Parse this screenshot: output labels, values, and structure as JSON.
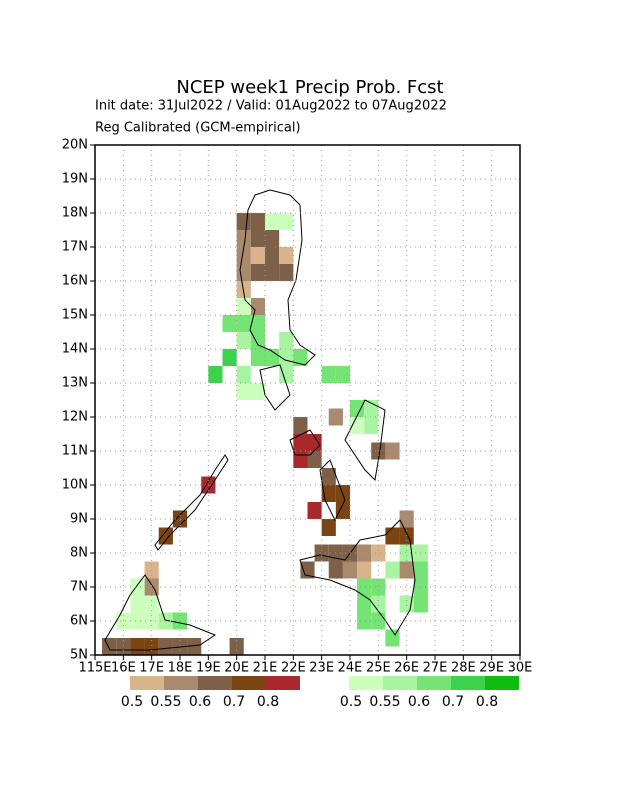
{
  "chart_data": {
    "type": "grid-map",
    "title": "NCEP week1 Precip Prob. Fcst",
    "subtitle": "Init date: 31Jul2022 / Valid: 01Aug2022 to 07Aug2022",
    "note": "Reg Calibrated (GCM-empirical)",
    "xlim": [
      115,
      130
    ],
    "ylim": [
      5,
      20
    ],
    "grid": true,
    "cell_size": 0.5,
    "xticks": [
      {
        "value": 115,
        "label": "115E"
      },
      {
        "value": 116,
        "label": "16E"
      },
      {
        "value": 117,
        "label": "17E"
      },
      {
        "value": 118,
        "label": "18E"
      },
      {
        "value": 119,
        "label": "19E"
      },
      {
        "value": 120,
        "label": "20E"
      },
      {
        "value": 121,
        "label": "21E"
      },
      {
        "value": 122,
        "label": "22E"
      },
      {
        "value": 123,
        "label": "23E"
      },
      {
        "value": 124,
        "label": "24E"
      },
      {
        "value": 125,
        "label": "25E"
      },
      {
        "value": 126,
        "label": "26E"
      },
      {
        "value": 127,
        "label": "27E"
      },
      {
        "value": 128,
        "label": "28E"
      },
      {
        "value": 129,
        "label": "29E"
      },
      {
        "value": 130,
        "label": "30E"
      }
    ],
    "yticks": [
      {
        "value": 5,
        "label": "5N"
      },
      {
        "value": 6,
        "label": "6N"
      },
      {
        "value": 7,
        "label": "7N"
      },
      {
        "value": 8,
        "label": "8N"
      },
      {
        "value": 9,
        "label": "9N"
      },
      {
        "value": 10,
        "label": "10N"
      },
      {
        "value": 11,
        "label": "11N"
      },
      {
        "value": 12,
        "label": "12N"
      },
      {
        "value": 13,
        "label": "13N"
      },
      {
        "value": 14,
        "label": "14N"
      },
      {
        "value": 15,
        "label": "15N"
      },
      {
        "value": 16,
        "label": "16N"
      },
      {
        "value": 17,
        "label": "17N"
      },
      {
        "value": 18,
        "label": "18N"
      },
      {
        "value": 19,
        "label": "19N"
      },
      {
        "value": 20,
        "label": "20N"
      }
    ],
    "below_legend": {
      "levels": [
        0.5,
        0.55,
        0.6,
        0.7,
        0.8
      ],
      "colors": [
        "#d8b48a",
        "#aa8a6c",
        "#7e6048",
        "#7c4412",
        "#a8282c"
      ]
    },
    "above_legend": {
      "levels": [
        0.5,
        0.55,
        0.6,
        0.7,
        0.8
      ],
      "colors": [
        "#ccffbc",
        "#a8f4a0",
        "#74e474",
        "#3cd24c",
        "#10bc10"
      ]
    },
    "below_cells": [
      {
        "lon": 120.0,
        "lat": 17.5,
        "p": 0.6
      },
      {
        "lon": 120.5,
        "lat": 17.5,
        "p": 0.6
      },
      {
        "lon": 120.0,
        "lat": 17.0,
        "p": 0.55
      },
      {
        "lon": 120.5,
        "lat": 17.0,
        "p": 0.6
      },
      {
        "lon": 121.0,
        "lat": 17.0,
        "p": 0.6
      },
      {
        "lon": 120.0,
        "lat": 16.5,
        "p": 0.55
      },
      {
        "lon": 120.5,
        "lat": 16.5,
        "p": 0.5
      },
      {
        "lon": 121.0,
        "lat": 16.5,
        "p": 0.6
      },
      {
        "lon": 121.5,
        "lat": 16.5,
        "p": 0.5
      },
      {
        "lon": 120.0,
        "lat": 16.0,
        "p": 0.55
      },
      {
        "lon": 120.5,
        "lat": 16.0,
        "p": 0.6
      },
      {
        "lon": 121.0,
        "lat": 16.0,
        "p": 0.6
      },
      {
        "lon": 121.5,
        "lat": 16.0,
        "p": 0.6
      },
      {
        "lon": 120.0,
        "lat": 15.5,
        "p": 0.5
      },
      {
        "lon": 120.5,
        "lat": 15.0,
        "p": 0.55
      },
      {
        "lon": 123.25,
        "lat": 11.75,
        "p": 0.55
      },
      {
        "lon": 122.0,
        "lat": 11.5,
        "p": 0.6
      },
      {
        "lon": 122.0,
        "lat": 11.0,
        "p": 0.8
      },
      {
        "lon": 122.5,
        "lat": 11.0,
        "p": 0.8
      },
      {
        "lon": 122.0,
        "lat": 10.5,
        "p": 0.8
      },
      {
        "lon": 122.5,
        "lat": 10.5,
        "p": 0.6
      },
      {
        "lon": 123.0,
        "lat": 10.0,
        "p": 0.6
      },
      {
        "lon": 123.0,
        "lat": 9.5,
        "p": 0.7
      },
      {
        "lon": 123.5,
        "lat": 9.5,
        "p": 0.7
      },
      {
        "lon": 122.5,
        "lat": 9.0,
        "p": 0.8
      },
      {
        "lon": 123.5,
        "lat": 9.0,
        "p": 0.7
      },
      {
        "lon": 123.0,
        "lat": 8.5,
        "p": 0.7
      },
      {
        "lon": 118.75,
        "lat": 9.75,
        "p": 0.8
      },
      {
        "lon": 117.75,
        "lat": 8.75,
        "p": 0.7
      },
      {
        "lon": 117.25,
        "lat": 8.25,
        "p": 0.7
      },
      {
        "lon": 124.75,
        "lat": 10.75,
        "p": 0.6
      },
      {
        "lon": 125.25,
        "lat": 10.75,
        "p": 0.55
      },
      {
        "lon": 122.75,
        "lat": 7.75,
        "p": 0.6
      },
      {
        "lon": 123.25,
        "lat": 7.75,
        "p": 0.6
      },
      {
        "lon": 123.75,
        "lat": 7.75,
        "p": 0.6
      },
      {
        "lon": 124.25,
        "lat": 7.75,
        "p": 0.55
      },
      {
        "lon": 124.75,
        "lat": 7.75,
        "p": 0.5
      },
      {
        "lon": 122.25,
        "lat": 7.25,
        "p": 0.6
      },
      {
        "lon": 123.25,
        "lat": 7.25,
        "p": 0.6
      },
      {
        "lon": 123.75,
        "lat": 7.25,
        "p": 0.55
      },
      {
        "lon": 124.25,
        "lat": 7.25,
        "p": 0.5
      },
      {
        "lon": 125.75,
        "lat": 8.75,
        "p": 0.55
      },
      {
        "lon": 125.25,
        "lat": 8.25,
        "p": 0.7
      },
      {
        "lon": 125.75,
        "lat": 8.25,
        "p": 0.7
      },
      {
        "lon": 125.75,
        "lat": 7.25,
        "p": 0.55
      },
      {
        "lon": 116.75,
        "lat": 7.25,
        "p": 0.5
      },
      {
        "lon": 116.75,
        "lat": 6.75,
        "p": 0.55
      },
      {
        "lon": 115.25,
        "lat": 5.0,
        "p": 0.6
      },
      {
        "lon": 115.75,
        "lat": 5.0,
        "p": 0.6
      },
      {
        "lon": 116.25,
        "lat": 5.0,
        "p": 0.7
      },
      {
        "lon": 116.75,
        "lat": 5.0,
        "p": 0.7
      },
      {
        "lon": 117.25,
        "lat": 5.0,
        "p": 0.6
      },
      {
        "lon": 117.75,
        "lat": 5.0,
        "p": 0.6
      },
      {
        "lon": 118.25,
        "lat": 5.0,
        "p": 0.6
      },
      {
        "lon": 119.75,
        "lat": 5.0,
        "p": 0.6
      }
    ],
    "above_cells": [
      {
        "lon": 121.0,
        "lat": 17.5,
        "p": 0.5
      },
      {
        "lon": 121.5,
        "lat": 17.5,
        "p": 0.5
      },
      {
        "lon": 120.0,
        "lat": 15.0,
        "p": 0.5
      },
      {
        "lon": 119.5,
        "lat": 14.5,
        "p": 0.6
      },
      {
        "lon": 120.0,
        "lat": 14.5,
        "p": 0.6
      },
      {
        "lon": 120.5,
        "lat": 14.5,
        "p": 0.6
      },
      {
        "lon": 121.5,
        "lat": 14.0,
        "p": 0.55
      },
      {
        "lon": 120.0,
        "lat": 14.0,
        "p": 0.55
      },
      {
        "lon": 120.5,
        "lat": 14.0,
        "p": 0.6
      },
      {
        "lon": 119.5,
        "lat": 13.5,
        "p": 0.7
      },
      {
        "lon": 120.5,
        "lat": 13.5,
        "p": 0.6
      },
      {
        "lon": 121.0,
        "lat": 13.5,
        "p": 0.6
      },
      {
        "lon": 121.5,
        "lat": 13.5,
        "p": 0.55
      },
      {
        "lon": 122.0,
        "lat": 13.5,
        "p": 0.6
      },
      {
        "lon": 119.0,
        "lat": 13.0,
        "p": 0.7
      },
      {
        "lon": 120.0,
        "lat": 13.0,
        "p": 0.55
      },
      {
        "lon": 121.5,
        "lat": 13.0,
        "p": 0.55
      },
      {
        "lon": 123.0,
        "lat": 13.0,
        "p": 0.6
      },
      {
        "lon": 123.5,
        "lat": 13.0,
        "p": 0.6
      },
      {
        "lon": 120.0,
        "lat": 12.5,
        "p": 0.5
      },
      {
        "lon": 120.5,
        "lat": 12.5,
        "p": 0.5
      },
      {
        "lon": 124.0,
        "lat": 12.0,
        "p": 0.6
      },
      {
        "lon": 124.5,
        "lat": 12.0,
        "p": 0.55
      },
      {
        "lon": 124.5,
        "lat": 11.5,
        "p": 0.55
      },
      {
        "lon": 124.0,
        "lat": 11.5,
        "p": 0.5
      },
      {
        "lon": 124.75,
        "lat": 6.75,
        "p": 0.6
      },
      {
        "lon": 124.25,
        "lat": 6.75,
        "p": 0.6
      },
      {
        "lon": 124.25,
        "lat": 6.25,
        "p": 0.6
      },
      {
        "lon": 124.75,
        "lat": 6.25,
        "p": 0.55
      },
      {
        "lon": 124.25,
        "lat": 5.75,
        "p": 0.6
      },
      {
        "lon": 124.75,
        "lat": 5.75,
        "p": 0.6
      },
      {
        "lon": 125.25,
        "lat": 7.25,
        "p": 0.55
      },
      {
        "lon": 125.75,
        "lat": 7.75,
        "p": 0.55
      },
      {
        "lon": 126.25,
        "lat": 7.75,
        "p": 0.55
      },
      {
        "lon": 126.25,
        "lat": 7.25,
        "p": 0.6
      },
      {
        "lon": 126.25,
        "lat": 6.75,
        "p": 0.6
      },
      {
        "lon": 126.25,
        "lat": 6.25,
        "p": 0.6
      },
      {
        "lon": 125.25,
        "lat": 5.25,
        "p": 0.6
      },
      {
        "lon": 125.75,
        "lat": 6.25,
        "p": 0.55
      },
      {
        "lon": 116.25,
        "lat": 6.25,
        "p": 0.5
      },
      {
        "lon": 116.75,
        "lat": 6.25,
        "p": 0.5
      },
      {
        "lon": 116.25,
        "lat": 6.75,
        "p": 0.5
      },
      {
        "lon": 115.75,
        "lat": 5.75,
        "p": 0.5
      },
      {
        "lon": 116.25,
        "lat": 5.75,
        "p": 0.5
      },
      {
        "lon": 116.75,
        "lat": 5.75,
        "p": 0.5
      },
      {
        "lon": 117.25,
        "lat": 5.75,
        "p": 0.55
      },
      {
        "lon": 117.75,
        "lat": 5.75,
        "p": 0.6
      }
    ]
  }
}
